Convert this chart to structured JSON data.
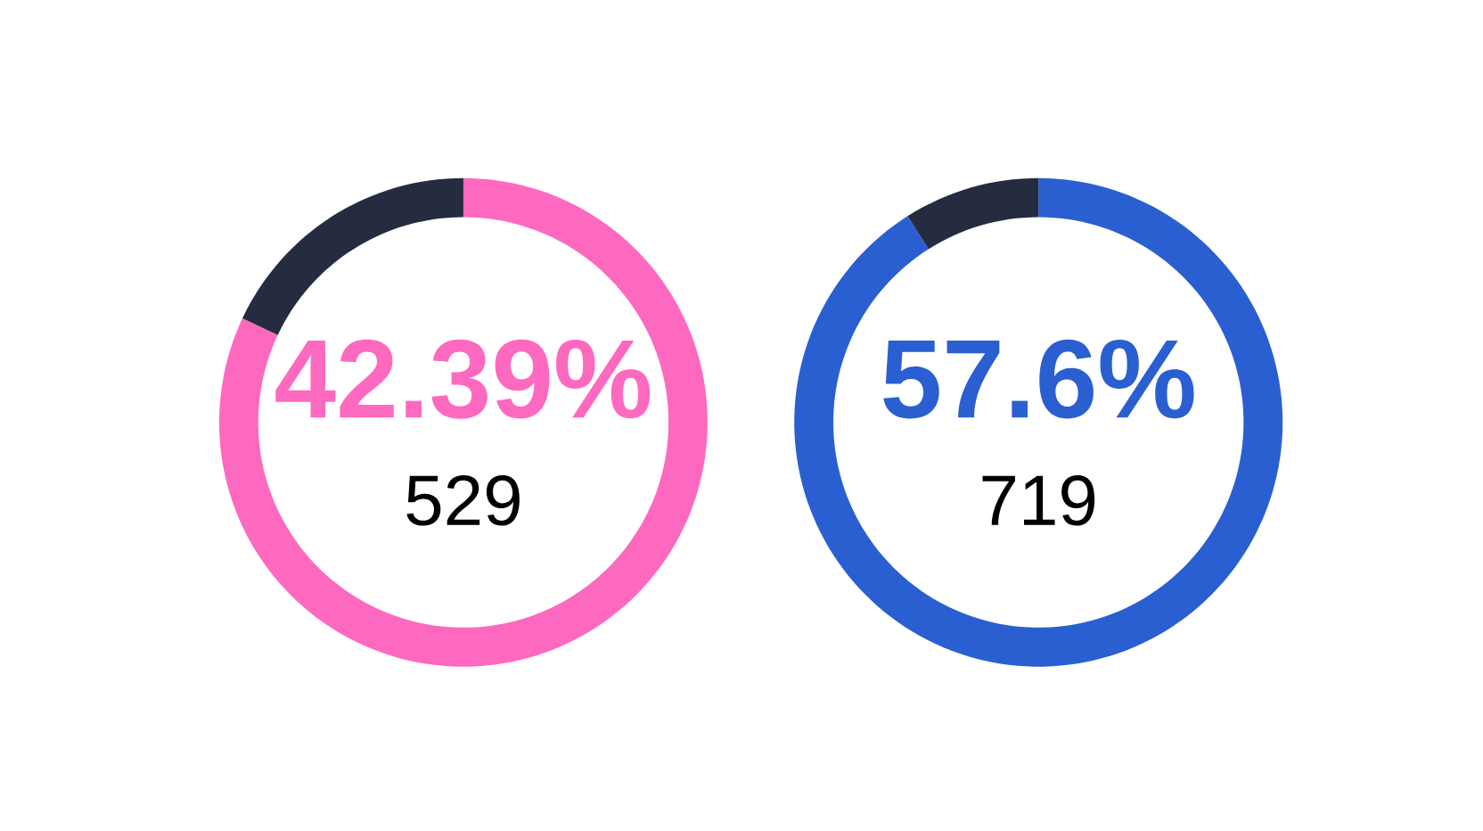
{
  "chart_data": [
    {
      "type": "donut",
      "categories": [
        null,
        null
      ],
      "values": [
        82,
        18
      ],
      "colors": [
        "#fe69c0",
        "#252c40"
      ],
      "annotations": [
        "42.39%",
        "529"
      ]
    },
    {
      "type": "donut",
      "categories": [
        null,
        null
      ],
      "values": [
        91,
        9
      ],
      "colors": [
        "#2a5fd1",
        "#252c40"
      ],
      "annotations": [
        "57.6%",
        "719"
      ]
    }
  ]
}
